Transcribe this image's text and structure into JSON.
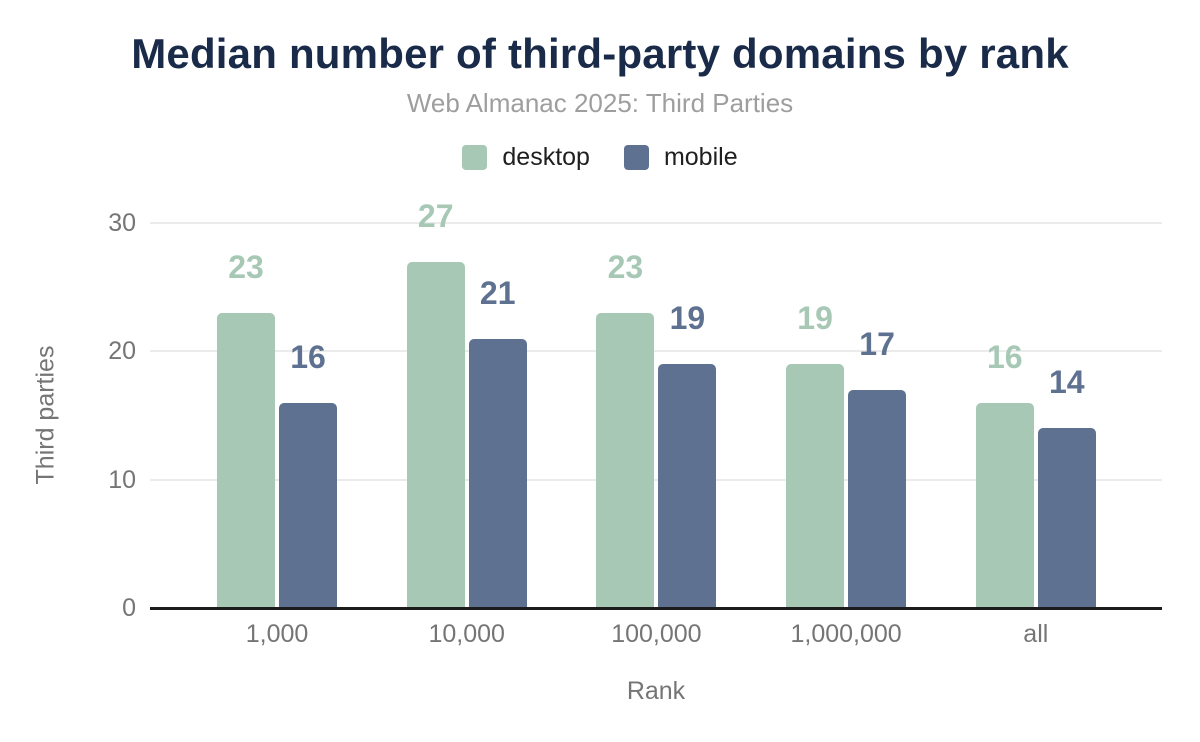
{
  "chart_data": {
    "type": "bar",
    "title": "Median number of third-party domains by rank",
    "subtitle": "Web Almanac 2025: Third Parties",
    "xlabel": "Rank",
    "ylabel": "Third parties",
    "categories": [
      "1,000",
      "10,000",
      "100,000",
      "1,000,000",
      "all"
    ],
    "series": [
      {
        "name": "desktop",
        "color": "#a6c8b5",
        "values": [
          23,
          27,
          23,
          19,
          16
        ]
      },
      {
        "name": "mobile",
        "color": "#5e7190",
        "values": [
          16,
          21,
          19,
          17,
          14
        ]
      }
    ],
    "ylim": [
      0,
      30
    ],
    "yticks": [
      0,
      10,
      20,
      30
    ],
    "grid": "horizontal",
    "legend_position": "top",
    "data_labels": "above bars, colored per series",
    "background": "#ffffff",
    "title_color": "#1a2b4a",
    "subtitle_color": "#9e9e9e",
    "axis_text_color": "#757575",
    "axis_line_color": "#1c1c1c",
    "gridline_color": "#ebebeb"
  }
}
